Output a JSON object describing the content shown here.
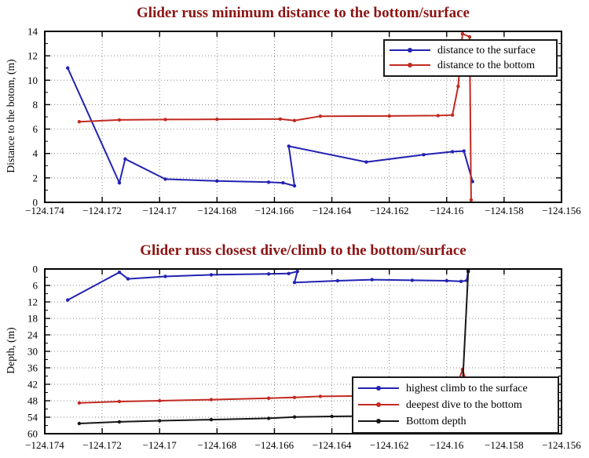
{
  "colors": {
    "title": "#8C1414",
    "surface_blue": "#2222B2",
    "bottom_red": "#C22A22",
    "depth_black": "#161616",
    "grid": "#858585",
    "axis": "#000000"
  },
  "chart_data": [
    {
      "type": "line",
      "title": "Glider russ minimum distance to the bottom/surface",
      "xlabel": "",
      "ylabel": "Distance to the botom, (m)",
      "xlim": [
        -124.174,
        -124.156
      ],
      "ylim": [
        0,
        14
      ],
      "y_inverted": false,
      "grid": true,
      "y_minor_step": 1,
      "xticks": [
        -124.174,
        -124.172,
        -124.17,
        -124.168,
        -124.166,
        -124.164,
        -124.162,
        -124.16,
        -124.158,
        -124.156
      ],
      "xtick_labels": [
        "−124.174",
        "−124.172",
        "−124.17",
        "−124.168",
        "−124.166",
        "−124.164",
        "−124.162",
        "−124.16",
        "−124.158",
        "−124.156"
      ],
      "yticks": [
        0,
        2,
        4,
        6,
        8,
        10,
        12,
        14
      ],
      "ytick_labels": [
        "0",
        "2",
        "4",
        "6",
        "8",
        "10",
        "12",
        "14"
      ],
      "legend": {
        "position": "top-right",
        "items": [
          {
            "label": "distance to the surface",
            "color": "#2222B2"
          },
          {
            "label": "distance to the bottom",
            "color": "#C22A22"
          }
        ]
      },
      "series": [
        {
          "id": "distance-to-the-surface",
          "name": "distance to the surface",
          "color": "#2222B2",
          "points": [
            [
              -124.1732,
              11.0
            ],
            [
              -124.1714,
              1.6
            ],
            [
              -124.1712,
              3.55
            ],
            [
              -124.1698,
              1.9
            ],
            [
              -124.168,
              1.75
            ],
            [
              -124.1662,
              1.65
            ],
            [
              -124.1657,
              1.6
            ],
            [
              -124.1653,
              1.35
            ],
            [
              -124.1655,
              4.6
            ],
            [
              -124.1628,
              3.3
            ],
            [
              -124.1608,
              3.9
            ],
            [
              -124.1598,
              4.15
            ],
            [
              -124.1594,
              4.2
            ],
            [
              -124.1591,
              1.7
            ]
          ]
        },
        {
          "id": "distance-to-the-bottom",
          "name": "distance to the bottom",
          "color": "#C22A22",
          "points": [
            [
              -124.1728,
              6.6
            ],
            [
              -124.1714,
              6.75
            ],
            [
              -124.1698,
              6.78
            ],
            [
              -124.168,
              6.8
            ],
            [
              -124.1658,
              6.82
            ],
            [
              -124.1653,
              6.7
            ],
            [
              -124.1644,
              7.05
            ],
            [
              -124.162,
              7.07
            ],
            [
              -124.1603,
              7.1
            ],
            [
              -124.1598,
              7.15
            ],
            [
              -124.1596,
              9.5
            ],
            [
              -124.15945,
              13.8
            ],
            [
              -124.1592,
              13.55
            ],
            [
              -124.15915,
              0.2
            ]
          ]
        }
      ]
    },
    {
      "type": "line",
      "title": "Glider russ closest dive/climb to the bottom/surface",
      "xlabel": "",
      "ylabel": "Depth, (m)",
      "xlim": [
        -124.174,
        -124.156
      ],
      "ylim": [
        0,
        60
      ],
      "y_inverted": true,
      "grid": true,
      "y_minor_step": 3,
      "xticks": [
        -124.174,
        -124.172,
        -124.17,
        -124.168,
        -124.166,
        -124.164,
        -124.162,
        -124.16,
        -124.158,
        -124.156
      ],
      "xtick_labels": [
        "−124.174",
        "−124.172",
        "−124.17",
        "−124.168",
        "−124.166",
        "−124.164",
        "−124.162",
        "−124.16",
        "−124.158",
        "−124.156"
      ],
      "yticks": [
        0,
        6,
        12,
        18,
        24,
        30,
        36,
        42,
        48,
        54,
        60
      ],
      "ytick_labels": [
        "0",
        "6",
        "12",
        "18",
        "24",
        "30",
        "36",
        "42",
        "48",
        "54",
        "60"
      ],
      "legend": {
        "position": "bottom-right",
        "items": [
          {
            "label": "highest climb to the surface",
            "color": "#2222B2"
          },
          {
            "label": "deepest dive to the bottom",
            "color": "#C22A22"
          },
          {
            "label": "Bottom depth",
            "color": "#161616"
          }
        ]
      },
      "series": [
        {
          "id": "highest-climb-to-the-surface",
          "name": "highest climb to the surface",
          "color": "#2222B2",
          "points": [
            [
              -124.1732,
              11.3
            ],
            [
              -124.1714,
              1.2
            ],
            [
              -124.1711,
              3.6
            ],
            [
              -124.1698,
              2.7
            ],
            [
              -124.1682,
              2.1
            ],
            [
              -124.1662,
              1.8
            ],
            [
              -124.1655,
              1.65
            ],
            [
              -124.1652,
              0.9
            ],
            [
              -124.1653,
              4.9
            ],
            [
              -124.1638,
              4.3
            ],
            [
              -124.1626,
              3.9
            ],
            [
              -124.1612,
              4.1
            ],
            [
              -124.16,
              4.3
            ],
            [
              -124.1595,
              4.5
            ],
            [
              -124.1593,
              4.2
            ],
            [
              -124.15925,
              0.6
            ]
          ]
        },
        {
          "id": "deepest-dive-to-the-bottom",
          "name": "deepest dive to the bottom",
          "color": "#C22A22",
          "points": [
            [
              -124.1728,
              48.8
            ],
            [
              -124.1714,
              48.3
            ],
            [
              -124.17,
              48.0
            ],
            [
              -124.1682,
              47.6
            ],
            [
              -124.1662,
              47.1
            ],
            [
              -124.1653,
              46.8
            ],
            [
              -124.1644,
              46.4
            ],
            [
              -124.1625,
              46.2
            ],
            [
              -124.1605,
              45.9
            ],
            [
              -124.1597,
              44.5
            ],
            [
              -124.15945,
              36.6
            ],
            [
              -124.1592,
              45.0
            ]
          ]
        },
        {
          "id": "bottom-depth",
          "name": "Bottom depth",
          "color": "#161616",
          "points": [
            [
              -124.1728,
              56.3
            ],
            [
              -124.1714,
              55.7
            ],
            [
              -124.17,
              55.3
            ],
            [
              -124.1682,
              54.9
            ],
            [
              -124.1662,
              54.4
            ],
            [
              -124.1653,
              53.9
            ],
            [
              -124.164,
              53.7
            ],
            [
              -124.162,
              53.5
            ],
            [
              -124.1603,
              53.3
            ],
            [
              -124.1595,
              53.1
            ],
            [
              -124.15925,
              1.0
            ]
          ]
        }
      ]
    }
  ]
}
